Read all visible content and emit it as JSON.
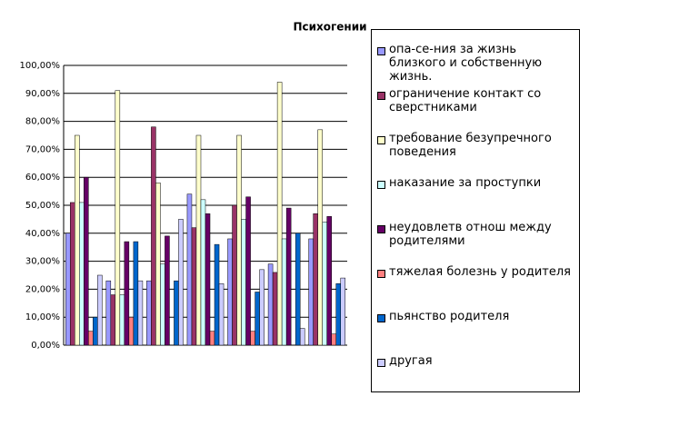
{
  "chart_data": {
    "type": "bar",
    "title": "Психогении",
    "categories": [
      null,
      null,
      null,
      null,
      null,
      null,
      null
    ],
    "series": [
      {
        "name": "опа-се-ния за жизнь близкого и собственную жизнь.",
        "color": "#9999ff",
        "values": [
          40,
          23,
          23,
          54,
          38,
          29,
          38
        ]
      },
      {
        "name": "ограничение контакт со сверстниками",
        "color": "#993366",
        "values": [
          51,
          18,
          78,
          42,
          50,
          26,
          47
        ]
      },
      {
        "name": "требование безупречного поведения",
        "color": "#ffffcc",
        "values": [
          75,
          91,
          58,
          75,
          75,
          94,
          77
        ]
      },
      {
        "name": "наказание за проступки",
        "color": "#ccffff",
        "values": [
          51,
          18,
          29,
          52,
          45,
          38,
          44
        ]
      },
      {
        "name": "неудовлетв отнош между родителями",
        "color": "#660066",
        "values": [
          60,
          37,
          39,
          47,
          53,
          49,
          46
        ]
      },
      {
        "name": "тяжелая болезнь у родителя",
        "color": "#ff8080",
        "values": [
          5,
          10,
          0,
          5,
          5,
          0,
          4
        ]
      },
      {
        "name": "пьянство родителя",
        "color": "#0066cc",
        "values": [
          10,
          37,
          23,
          36,
          19,
          40,
          22
        ]
      },
      {
        "name": "другая",
        "color": "#ccccff",
        "values": [
          25,
          23,
          45,
          22,
          27,
          6,
          24
        ]
      }
    ],
    "ylim": [
      0,
      100
    ],
    "yticks": [
      {
        "value": 0,
        "label": "0,00%"
      },
      {
        "value": 10,
        "label": "10,00%"
      },
      {
        "value": 20,
        "label": "20,00%"
      },
      {
        "value": 30,
        "label": "30,00%"
      },
      {
        "value": 40,
        "label": "40,00%"
      },
      {
        "value": 50,
        "label": "50,00%"
      },
      {
        "value": 60,
        "label": "60,00%"
      },
      {
        "value": 70,
        "label": "70,00%"
      },
      {
        "value": 80,
        "label": "80,00%"
      },
      {
        "value": 90,
        "label": "90,00%"
      },
      {
        "value": 100,
        "label": "100,00%"
      }
    ],
    "grid": true
  }
}
